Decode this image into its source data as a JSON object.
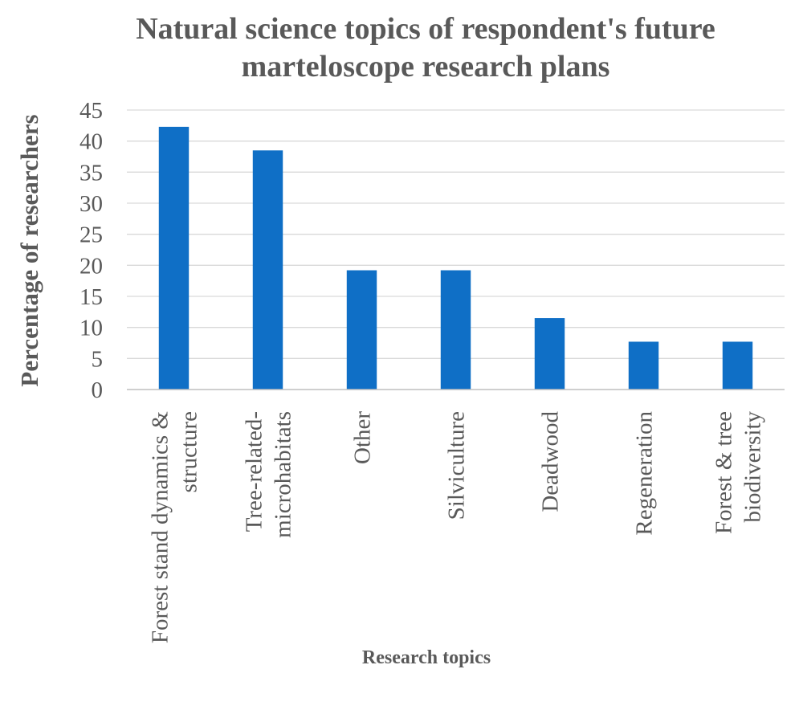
{
  "chart_data": {
    "type": "bar",
    "title": [
      "Natural science topics of respondent's future",
      "marteloscope research plans"
    ],
    "xlabel": "Research topics",
    "ylabel": "Percentage of researchers",
    "ylim": [
      0,
      45
    ],
    "yticks": [
      "0",
      "5",
      "10",
      "15",
      "20",
      "25",
      "30",
      "35",
      "40",
      "45"
    ],
    "grid": true,
    "legend": "none",
    "bar_color": "#0f6fc6",
    "categories": [
      [
        "Forest stand dynamics &",
        "structure"
      ],
      [
        "Tree-related-",
        "microhabitats"
      ],
      [
        "Other"
      ],
      [
        "Silviculture"
      ],
      [
        "Deadwood"
      ],
      [
        "Regeneration"
      ],
      [
        "Forest & tree",
        "biodiversity"
      ]
    ],
    "values": [
      42.3,
      38.5,
      19.2,
      19.2,
      11.5,
      7.7,
      7.7
    ]
  }
}
